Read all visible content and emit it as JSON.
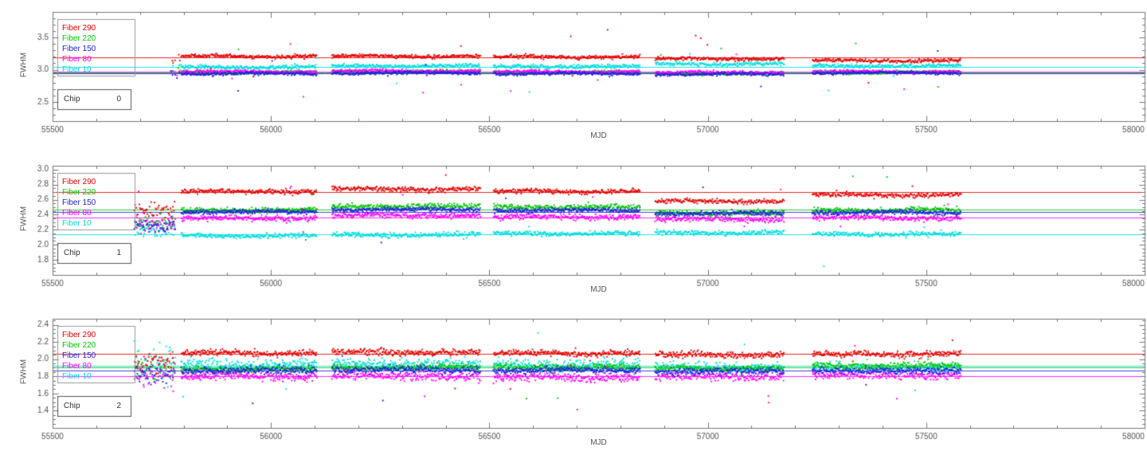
{
  "style": {
    "background": "#ffffff",
    "axis_color": "#777777",
    "tick_label_color": "#555555",
    "axis_label_color": "#555555",
    "legend_box_color": "#999999",
    "chip_box_color": "#555555"
  },
  "chart_data": [
    {
      "type": "scatter",
      "title": "",
      "xlabel": "MJD",
      "ylabel": "FWHM",
      "chip_label": "Chip",
      "chip_number": "0",
      "xlim": [
        55500,
        58000
      ],
      "xticks": [
        55500,
        56000,
        56500,
        57000,
        57500,
        58000
      ],
      "x_minor_step": 100,
      "ylim": [
        2.2,
        3.9
      ],
      "yticks": [
        2.5,
        3.0,
        3.5
      ],
      "y_minor_step": 0.1,
      "legend_position": "top-left",
      "grid": false,
      "segments": [
        {
          "x0": 55772,
          "x1": 55794,
          "step": 5.0,
          "spread": 3.0
        },
        {
          "x0": 55795,
          "x1": 56105,
          "step": 1.4,
          "spread": 1.0
        },
        {
          "x0": 56140,
          "x1": 56480,
          "step": 1.4,
          "spread": 1.0
        },
        {
          "x0": 56510,
          "x1": 56845,
          "step": 1.4,
          "spread": 1.0
        },
        {
          "x0": 56880,
          "x1": 57175,
          "step": 1.5,
          "spread": 1.0
        },
        {
          "x0": 57240,
          "x1": 57580,
          "step": 1.5,
          "spread": 1.0
        }
      ],
      "series": [
        {
          "name": "Fiber 290",
          "color": "#e60000",
          "levels": [
            3.15,
            3.21,
            3.21,
            3.2,
            3.17,
            3.14
          ],
          "sigma": 0.013,
          "median": 3.19
        },
        {
          "name": "Fiber 220",
          "color": "#00c800",
          "levels": [
            2.93,
            2.96,
            2.97,
            2.96,
            2.94,
            2.96
          ],
          "sigma": 0.012,
          "median": 2.96
        },
        {
          "name": "Fiber 150",
          "color": "#2020e0",
          "levels": [
            2.92,
            2.94,
            2.95,
            2.94,
            2.93,
            2.95
          ],
          "sigma": 0.012,
          "median": 2.94
        },
        {
          "name": "Fiber 80",
          "color": "#ff00ff",
          "levels": [
            2.96,
            2.97,
            2.98,
            2.97,
            2.96,
            2.97
          ],
          "sigma": 0.012,
          "median": 2.97
        },
        {
          "name": "Fiber 10",
          "color": "#00dede",
          "levels": [
            3.02,
            3.04,
            3.06,
            3.05,
            3.09,
            3.06
          ],
          "sigma": 0.015,
          "median": 3.05
        }
      ]
    },
    {
      "type": "scatter",
      "title": "",
      "xlabel": "MJD",
      "ylabel": "FWHM",
      "chip_label": "Chip",
      "chip_number": "1",
      "xlim": [
        55500,
        58000
      ],
      "xticks": [
        55500,
        56000,
        56500,
        57000,
        57500,
        58000
      ],
      "x_minor_step": 100,
      "ylim": [
        1.6,
        3.05
      ],
      "yticks": [
        1.8,
        2.0,
        2.2,
        2.4,
        2.6,
        2.8,
        3.0
      ],
      "y_minor_step": 0.05,
      "legend_position": "top-left",
      "grid": false,
      "segments": [
        {
          "x0": 55688,
          "x1": 55782,
          "step": 2.0,
          "spread": 3.0
        },
        {
          "x0": 55795,
          "x1": 56105,
          "step": 1.4,
          "spread": 1.0
        },
        {
          "x0": 56140,
          "x1": 56480,
          "step": 1.4,
          "spread": 1.0
        },
        {
          "x0": 56510,
          "x1": 56845,
          "step": 1.4,
          "spread": 1.0
        },
        {
          "x0": 56880,
          "x1": 57175,
          "step": 1.5,
          "spread": 1.0
        },
        {
          "x0": 57240,
          "x1": 57580,
          "step": 1.5,
          "spread": 1.0
        }
      ],
      "series": [
        {
          "name": "Fiber 290",
          "color": "#e60000",
          "levels": [
            2.45,
            2.71,
            2.74,
            2.71,
            2.58,
            2.66
          ],
          "sigma": 0.015,
          "median": 2.7
        },
        {
          "name": "Fiber 220",
          "color": "#00c800",
          "levels": [
            2.3,
            2.46,
            2.51,
            2.5,
            2.42,
            2.46
          ],
          "sigma": 0.018,
          "median": 2.47
        },
        {
          "name": "Fiber 150",
          "color": "#2020e0",
          "levels": [
            2.27,
            2.44,
            2.47,
            2.46,
            2.42,
            2.43
          ],
          "sigma": 0.015,
          "median": 2.44
        },
        {
          "name": "Fiber 80",
          "color": "#ff00ff",
          "levels": [
            2.26,
            2.35,
            2.39,
            2.37,
            2.34,
            2.36
          ],
          "sigma": 0.018,
          "median": 2.36
        },
        {
          "name": "Fiber 10",
          "color": "#00dede",
          "levels": [
            2.18,
            2.12,
            2.13,
            2.15,
            2.16,
            2.14
          ],
          "sigma": 0.015,
          "median": 2.14
        }
      ]
    },
    {
      "type": "scatter",
      "title": "",
      "xlabel": "MJD",
      "ylabel": "FWHM",
      "chip_label": "Chip",
      "chip_number": "2",
      "xlim": [
        55500,
        58000
      ],
      "xticks": [
        55500,
        56000,
        56500,
        57000,
        57500,
        58000
      ],
      "x_minor_step": 100,
      "ylim": [
        1.2,
        2.47
      ],
      "yticks": [
        1.4,
        1.6,
        1.8,
        2.0,
        2.2,
        2.4
      ],
      "y_minor_step": 0.05,
      "legend_position": "top-left",
      "grid": false,
      "segments": [
        {
          "x0": 55688,
          "x1": 55782,
          "step": 2.0,
          "spread": 3.0
        },
        {
          "x0": 55795,
          "x1": 56105,
          "step": 1.4,
          "spread": 1.0
        },
        {
          "x0": 56140,
          "x1": 56480,
          "step": 1.4,
          "spread": 1.0
        },
        {
          "x0": 56510,
          "x1": 56845,
          "step": 1.4,
          "spread": 1.0
        },
        {
          "x0": 56880,
          "x1": 57175,
          "step": 1.5,
          "spread": 1.0
        },
        {
          "x0": 57240,
          "x1": 57580,
          "step": 1.5,
          "spread": 1.0
        }
      ],
      "series": [
        {
          "name": "Fiber 290",
          "color": "#e60000",
          "levels": [
            1.96,
            2.07,
            2.08,
            2.07,
            2.05,
            2.06
          ],
          "sigma": 0.018,
          "median": 2.06
        },
        {
          "name": "Fiber 220",
          "color": "#00c800",
          "levels": [
            1.86,
            1.88,
            1.9,
            1.9,
            1.89,
            1.92
          ],
          "sigma": 0.02,
          "median": 1.9
        },
        {
          "name": "Fiber 150",
          "color": "#2020e0",
          "levels": [
            1.84,
            1.87,
            1.88,
            1.87,
            1.86,
            1.87
          ],
          "sigma": 0.02,
          "median": 1.87
        },
        {
          "name": "Fiber 80",
          "color": "#ff00ff",
          "levels": [
            1.8,
            1.8,
            1.8,
            1.79,
            1.8,
            1.81
          ],
          "sigma": 0.025,
          "median": 1.8
        },
        {
          "name": "Fiber 10",
          "color": "#00dede",
          "levels": [
            2.0,
            1.93,
            1.94,
            1.93,
            1.9,
            1.89
          ],
          "sigma": 0.035,
          "median": 1.92
        }
      ]
    }
  ]
}
